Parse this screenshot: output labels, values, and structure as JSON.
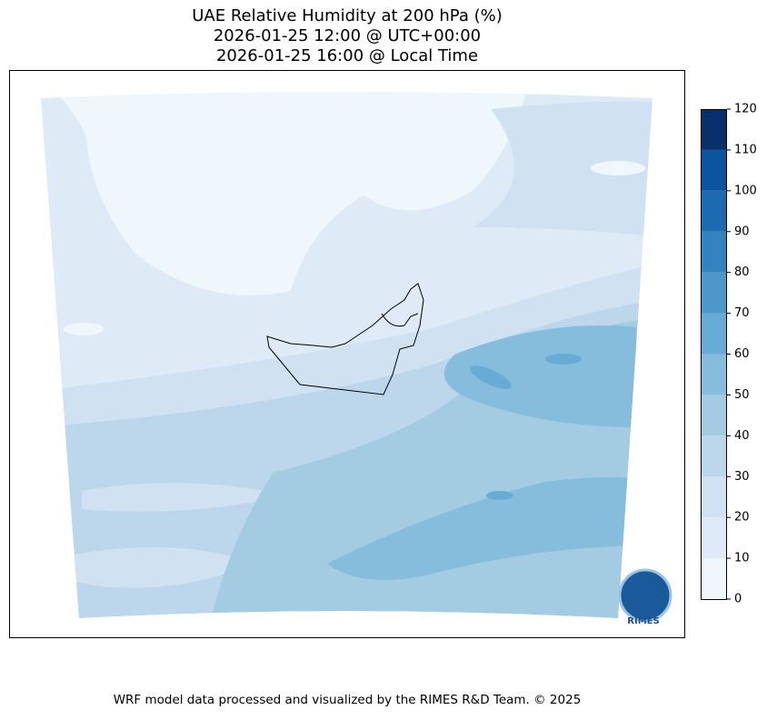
{
  "chart_data": {
    "type": "filled-contour-map",
    "title": [
      "UAE Relative Humidity at 200 hPa (%)",
      "2026-01-25 12:00 @ UTC+00:00",
      "2026-01-25 16:00 @ Local Time"
    ],
    "colorbar": {
      "levels": [
        0,
        10,
        20,
        30,
        40,
        50,
        60,
        70,
        80,
        90,
        100,
        110,
        120
      ],
      "colors": [
        "#eff6fc",
        "#deebf7",
        "#d0e2f2",
        "#bcd7eb",
        "#a3cce3",
        "#86bcdc",
        "#68acd5",
        "#4b98c9",
        "#3283be",
        "#1c6bb0",
        "#0b55a0",
        "#08306b"
      ]
    },
    "logo_text": "RIMES",
    "footer": "WRF model data processed and visualized by the RIMES R&D Team. © 2025"
  }
}
